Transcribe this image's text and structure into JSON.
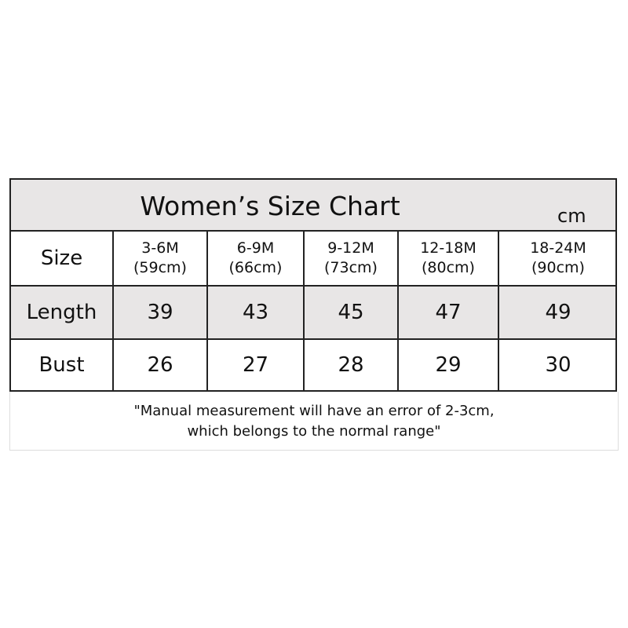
{
  "title": "Women’s Size Chart",
  "unit": "cm",
  "table": {
    "row_header": "Size",
    "sizes": [
      {
        "label": "3-6M",
        "height": "(59cm)"
      },
      {
        "label": "6-9M",
        "height": "(66cm)"
      },
      {
        "label": "9-12M",
        "height": "(73cm)"
      },
      {
        "label": "12-18M",
        "height": "(80cm)"
      },
      {
        "label": "18-24M",
        "height": "(90cm)"
      }
    ],
    "rows": [
      {
        "label": "Length",
        "values": [
          "39",
          "43",
          "45",
          "47",
          "49"
        ]
      },
      {
        "label": "Bust",
        "values": [
          "26",
          "27",
          "28",
          "29",
          "30"
        ]
      }
    ]
  },
  "note": {
    "line1": "\"Manual measurement will have an error of 2-3cm,",
    "line2": "which belongs to the normal range\""
  },
  "colors": {
    "header_fill": "#e8e6e6",
    "border": "#222222"
  }
}
